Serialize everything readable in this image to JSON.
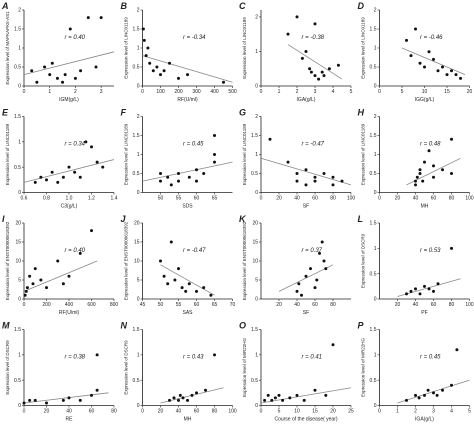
{
  "chart_data": [
    {
      "type": "scatter",
      "label": "A",
      "ylabel": "Expression level of MAPKAPK5-AS1",
      "xlabel": "IGM(g/L)",
      "annotation": "r = 0.40",
      "xlim": [
        0,
        3.5
      ],
      "ylim": [
        0,
        2
      ],
      "xticks": [
        0,
        1,
        2,
        3
      ],
      "yticks": [
        0,
        0.5,
        1,
        1.5,
        2
      ],
      "x": [
        0.3,
        0.5,
        0.8,
        1,
        1.1,
        1.3,
        1.5,
        1.6,
        1.8,
        2,
        2.2,
        2.5,
        2.8,
        3
      ],
      "y": [
        0.4,
        0.1,
        0.5,
        0.3,
        0.6,
        0.2,
        0.1,
        0.3,
        1.5,
        0.2,
        0.4,
        1.8,
        0.5,
        1.8
      ],
      "trend": {
        "x": [
          0,
          3.5
        ],
        "y": [
          0.3,
          0.9
        ]
      }
    },
    {
      "type": "scatter",
      "label": "B",
      "ylabel": "Expression level of LINC01189",
      "xlabel": "RF(U/ml)",
      "annotation": "r = -0.34",
      "xlim": [
        0,
        500
      ],
      "ylim": [
        0,
        2
      ],
      "xticks": [
        0,
        100,
        200,
        300,
        400,
        500
      ],
      "yticks": [
        0,
        0.5,
        1,
        1.5,
        2
      ],
      "x": [
        5,
        10,
        20,
        30,
        40,
        60,
        80,
        100,
        120,
        150,
        200,
        250,
        450
      ],
      "y": [
        1.5,
        1.2,
        0.8,
        1,
        0.6,
        0.4,
        0.5,
        0.3,
        0.4,
        0.6,
        0.2,
        0.3,
        0.1
      ],
      "trend": {
        "x": [
          0,
          500
        ],
        "y": [
          0.8,
          0.1
        ]
      }
    },
    {
      "type": "scatter",
      "label": "C",
      "ylabel": "Expression level of LINC01189",
      "xlabel": "IGA(g/L)",
      "annotation": "r = -0.38",
      "xlim": [
        0,
        5
      ],
      "ylim": [
        0,
        2.2
      ],
      "xticks": [
        0,
        1,
        2,
        3,
        4,
        5
      ],
      "yticks": [
        0,
        1,
        2
      ],
      "x": [
        1.5,
        2,
        2.3,
        2.5,
        2.7,
        2.8,
        3,
        3,
        3.2,
        3.4,
        3.5,
        3.8,
        4.3
      ],
      "y": [
        1.5,
        2,
        0.8,
        1,
        0.5,
        0.4,
        0.3,
        1.8,
        0.2,
        0.4,
        0.3,
        0.5,
        0.6
      ],
      "trend": {
        "x": [
          1.5,
          4.5
        ],
        "y": [
          1.2,
          0.2
        ]
      }
    },
    {
      "type": "scatter",
      "label": "D",
      "ylabel": "Expression level of LINC01189",
      "xlabel": "IGG(g/L)",
      "annotation": "r = -0.46",
      "xlim": [
        0,
        20
      ],
      "ylim": [
        0,
        2
      ],
      "xticks": [
        0,
        5,
        10,
        15,
        20
      ],
      "yticks": [
        0,
        0.5,
        1,
        1.5,
        2
      ],
      "x": [
        6,
        7,
        8,
        9,
        10,
        11,
        12,
        13,
        14,
        15,
        16,
        17,
        18
      ],
      "y": [
        1.2,
        0.8,
        1.5,
        0.6,
        0.5,
        0.9,
        0.7,
        0.4,
        0.5,
        0.3,
        0.4,
        0.3,
        0.2
      ],
      "trend": {
        "x": [
          5,
          19
        ],
        "y": [
          1,
          0.3
        ]
      }
    },
    {
      "type": "scatter",
      "label": "E",
      "ylabel": "Expression level of LINC01189",
      "xlabel": "C3(g/L)",
      "annotation": "r = 0.34",
      "xlim": [
        0.6,
        1.4
      ],
      "ylim": [
        0,
        1.5
      ],
      "xticks": [
        0.6,
        0.8,
        {
          "value": 1,
          "label": "1.0"
        },
        1.2,
        1.4
      ],
      "yticks": [
        0,
        0.5,
        1,
        1.5
      ],
      "x": [
        0.7,
        0.75,
        0.8,
        0.85,
        0.9,
        0.95,
        1,
        1.05,
        1.1,
        1.15,
        1.2,
        1.25,
        1.3
      ],
      "y": [
        0.2,
        0.3,
        0.25,
        0.4,
        0.2,
        0.3,
        0.5,
        0.4,
        0.3,
        1,
        0.9,
        0.6,
        0.5
      ],
      "trend": {
        "x": [
          0.6,
          1.4
        ],
        "y": [
          0.2,
          0.65
        ]
      }
    },
    {
      "type": "scatter",
      "label": "F",
      "ylabel": "Expression level of LINC01189",
      "xlabel": "SDS",
      "annotation": "r = 0.45",
      "xlim": [
        45,
        70
      ],
      "ylim": [
        0,
        2
      ],
      "xticks": [
        50,
        55,
        60,
        65
      ],
      "yticks": [
        0,
        0.5,
        1,
        1.5,
        2
      ],
      "x": [
        50,
        50,
        52,
        53,
        55,
        55,
        58,
        60,
        60,
        62,
        65,
        65,
        65
      ],
      "y": [
        0.3,
        0.5,
        0.4,
        0.2,
        0.5,
        0.3,
        0.4,
        0.6,
        0.3,
        0.5,
        1.5,
        1,
        0.8
      ],
      "trend": {
        "x": [
          45,
          70
        ],
        "y": [
          0.3,
          0.8
        ]
      }
    },
    {
      "type": "scatter",
      "label": "G",
      "ylabel": "Expression level of LINC01189",
      "xlabel": "SF",
      "annotation": "r = -0.47",
      "xlim": [
        0,
        100
      ],
      "ylim": [
        0,
        2
      ],
      "xticks": [
        0,
        20,
        40,
        60,
        80,
        100
      ],
      "yticks": [
        0,
        0.5,
        1,
        1.5,
        2
      ],
      "x": [
        10,
        30,
        40,
        40,
        50,
        50,
        60,
        60,
        70,
        80,
        80,
        90
      ],
      "y": [
        1.4,
        0.8,
        0.5,
        0.3,
        0.6,
        0.2,
        0.4,
        0.3,
        0.5,
        0.2,
        0.4,
        0.3
      ],
      "trend": {
        "x": [
          0,
          100
        ],
        "y": [
          0.9,
          0.2
        ]
      }
    },
    {
      "type": "scatter",
      "label": "H",
      "ylabel": "Expression level of LINC01189",
      "xlabel": "MH",
      "annotation": "r = 0.48",
      "xlim": [
        0,
        100
      ],
      "ylim": [
        0,
        2
      ],
      "xticks": [
        0,
        20,
        40,
        60,
        80,
        100
      ],
      "yticks": [
        0,
        0.5,
        1,
        1.5,
        2
      ],
      "x": [
        40,
        40,
        42,
        45,
        45,
        48,
        50,
        55,
        60,
        60,
        70,
        80,
        80
      ],
      "y": [
        0.2,
        0.3,
        0.4,
        0.5,
        0.6,
        0.3,
        0.8,
        1.1,
        0.7,
        0.4,
        0.6,
        1.4,
        0.5
      ],
      "trend": {
        "x": [
          30,
          90
        ],
        "y": [
          0.2,
          0.9
        ]
      }
    },
    {
      "type": "scatter",
      "label": "I",
      "ylabel": "Expression level of ENST00000618392",
      "xlabel": "RF(U/ml)",
      "annotation": "r = 0.40",
      "xlim": [
        0,
        800
      ],
      "ylim": [
        0,
        20
      ],
      "xticks": [
        0,
        200,
        400,
        600,
        800
      ],
      "yticks": [
        0,
        5,
        10,
        15,
        20
      ],
      "x": [
        10,
        20,
        30,
        50,
        80,
        100,
        150,
        200,
        300,
        350,
        400,
        500,
        600
      ],
      "y": [
        1,
        2,
        3,
        6,
        4,
        8,
        5,
        3,
        10,
        4,
        6,
        12,
        18
      ],
      "trend": {
        "x": [
          0,
          650
        ],
        "y": [
          2,
          10
        ]
      }
    },
    {
      "type": "scatter",
      "label": "J",
      "ylabel": "Expression level of ENST00000618392",
      "xlabel": "SAS",
      "annotation": "r = -0.47",
      "xlim": [
        45,
        70
      ],
      "ylim": [
        0,
        20
      ],
      "xticks": [
        45,
        50,
        55,
        60,
        65,
        70
      ],
      "yticks": [
        0,
        5,
        10,
        15,
        20
      ],
      "x": [
        50,
        51,
        52,
        53,
        54,
        55,
        56,
        57,
        58,
        60,
        62,
        64
      ],
      "y": [
        10,
        6,
        4,
        15,
        5,
        8,
        3,
        2,
        4,
        2,
        3,
        1
      ],
      "trend": {
        "x": [
          50,
          65
        ],
        "y": [
          9,
          1
        ]
      }
    },
    {
      "type": "scatter",
      "label": "K",
      "ylabel": "Expression level of ENST00000618392",
      "xlabel": "SF",
      "annotation": "r = 0.37",
      "xlim": [
        0,
        100
      ],
      "ylim": [
        0,
        20
      ],
      "xticks": [
        20,
        40,
        60,
        80
      ],
      "yticks": [
        0,
        5,
        10,
        15,
        20
      ],
      "x": [
        40,
        42,
        45,
        50,
        55,
        60,
        62,
        65,
        68,
        70,
        72
      ],
      "y": [
        2,
        4,
        1,
        6,
        8,
        3,
        5,
        12,
        15,
        10,
        8
      ],
      "trend": {
        "x": [
          20,
          80
        ],
        "y": [
          2,
          9
        ]
      }
    },
    {
      "type": "scatter",
      "label": "L",
      "ylabel": "Expression level of DSCR9",
      "xlabel": "PF",
      "annotation": "r = 0.53",
      "xlim": [
        0,
        100
      ],
      "ylim": [
        0,
        1.5
      ],
      "xticks": [
        20,
        40,
        60,
        80,
        100
      ],
      "yticks": [
        0,
        0.5,
        1,
        1.5
      ],
      "x": [
        30,
        35,
        40,
        45,
        50,
        55,
        60,
        65,
        80
      ],
      "y": [
        0.1,
        0.15,
        0.2,
        0.1,
        0.25,
        0.2,
        0.15,
        0.3,
        1
      ],
      "trend": {
        "x": [
          20,
          90
        ],
        "y": [
          0.05,
          0.4
        ]
      }
    },
    {
      "type": "scatter",
      "label": "M",
      "ylabel": "Expression level of DSCR9",
      "xlabel": "RE",
      "annotation": "r = 0.38",
      "xlim": [
        0,
        80
      ],
      "ylim": [
        0,
        1.5
      ],
      "xticks": [
        0,
        20,
        40,
        60,
        80
      ],
      "yticks": [
        0,
        0.5,
        1,
        1.5
      ],
      "x": [
        0,
        5,
        10,
        20,
        35,
        40,
        50,
        60,
        65,
        65
      ],
      "y": [
        0.05,
        0.1,
        0.1,
        0.05,
        0.1,
        0.15,
        0.1,
        0.2,
        0.3,
        1
      ],
      "trend": {
        "x": [
          0,
          75
        ],
        "y": [
          0.05,
          0.25
        ]
      }
    },
    {
      "type": "scatter",
      "label": "N",
      "ylabel": "Expression level of DSCR9",
      "xlabel": "MH",
      "annotation": "r = 0.43",
      "xlim": [
        0,
        100
      ],
      "ylim": [
        0,
        1.5
      ],
      "xticks": [
        0,
        20,
        40,
        60,
        80,
        100
      ],
      "yticks": [
        0,
        0.5,
        1,
        1.5
      ],
      "x": [
        30,
        35,
        40,
        42,
        45,
        50,
        55,
        60,
        70,
        80
      ],
      "y": [
        0.1,
        0.15,
        0.1,
        0.2,
        0.15,
        0.1,
        0.2,
        0.25,
        0.3,
        1
      ],
      "trend": {
        "x": [
          20,
          90
        ],
        "y": [
          0.05,
          0.35
        ]
      }
    },
    {
      "type": "scatter",
      "label": "O",
      "ylabel": "Expression level of MIR22HG",
      "xlabel": "Course of the disease( year)",
      "annotation": "r = 0.41",
      "xlim": [
        0,
        25
      ],
      "ylim": [
        0,
        1.5
      ],
      "xticks": [
        0,
        5,
        10,
        15,
        20,
        25
      ],
      "yticks": [
        0,
        0.5,
        1,
        1.5
      ],
      "x": [
        1,
        2,
        3,
        4,
        5,
        6,
        8,
        10,
        12,
        15,
        18,
        20
      ],
      "y": [
        0.1,
        0.2,
        0.1,
        0.15,
        0.2,
        0.1,
        0.15,
        0.2,
        0.1,
        0.3,
        0.2,
        1.2
      ],
      "trend": {
        "x": [
          0,
          25
        ],
        "y": [
          0.05,
          0.35
        ]
      }
    },
    {
      "type": "scatter",
      "label": "P",
      "ylabel": "Expression level of MIR22HG",
      "xlabel": "IGA(g/L)",
      "annotation": "r = 0.45",
      "xlim": [
        0,
        5
      ],
      "ylim": [
        0,
        1.5
      ],
      "xticks": [
        0,
        1,
        2,
        3,
        4,
        5
      ],
      "yticks": [
        0,
        0.5,
        1,
        1.5
      ],
      "x": [
        1.5,
        2,
        2.2,
        2.5,
        2.7,
        3,
        3.2,
        3.5,
        4,
        4.3
      ],
      "y": [
        0.1,
        0.2,
        0.15,
        0.2,
        0.3,
        0.25,
        0.2,
        0.3,
        0.4,
        1.1
      ],
      "trend": {
        "x": [
          1,
          5
        ],
        "y": [
          0.05,
          0.5
        ]
      }
    }
  ]
}
